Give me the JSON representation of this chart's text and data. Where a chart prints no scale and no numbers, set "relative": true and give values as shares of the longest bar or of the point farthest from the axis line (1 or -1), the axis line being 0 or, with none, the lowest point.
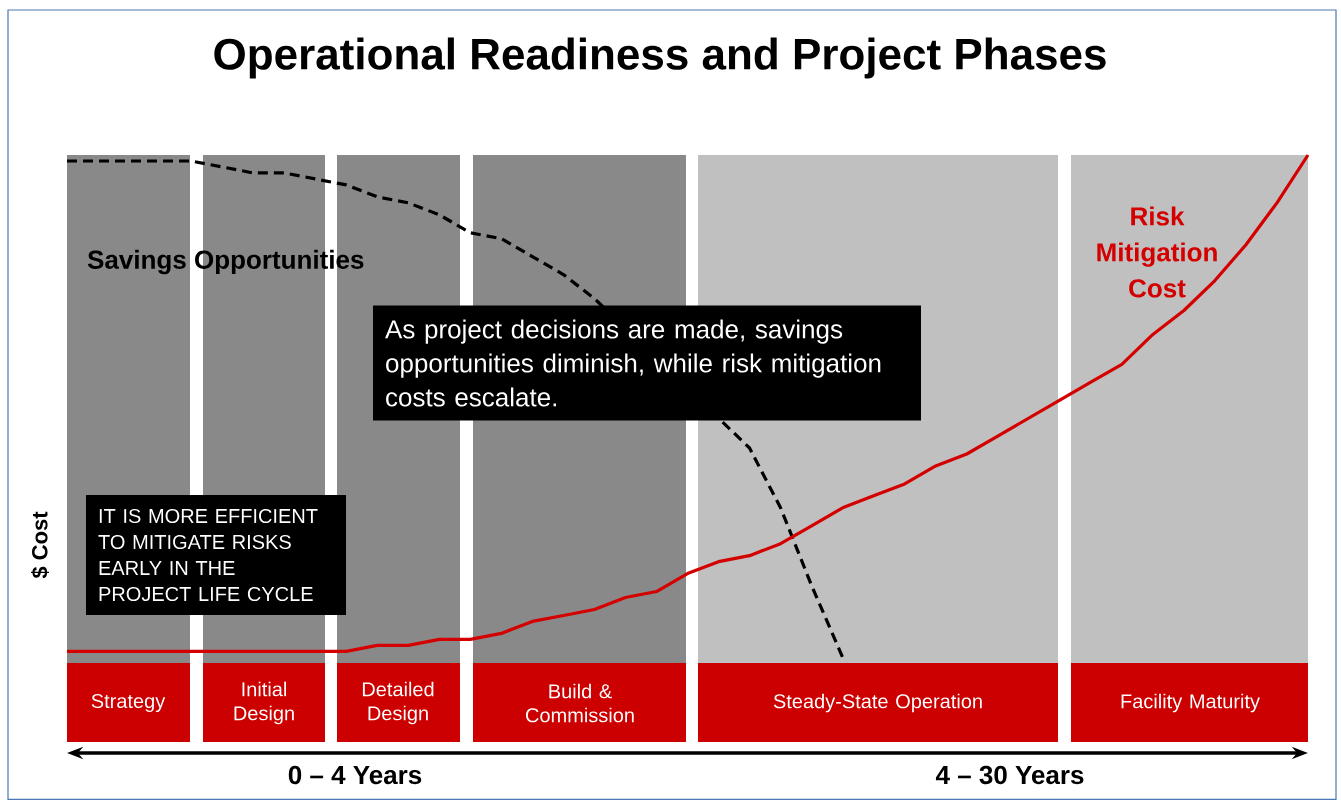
{
  "chart_data": {
    "type": "line",
    "title": "Operational Readiness and Project Phases",
    "ylabel": "$ Cost",
    "relative": true,
    "categories": [
      null,
      null,
      null,
      null,
      null,
      null,
      null,
      null,
      null,
      null,
      null,
      null,
      null,
      null,
      null,
      null,
      null,
      null,
      null,
      null,
      null,
      null,
      null,
      null,
      null,
      null,
      null,
      null,
      null,
      null,
      null,
      null,
      null,
      null,
      null,
      null,
      null,
      null,
      null,
      null,
      null
    ],
    "series": [
      {
        "name": "Savings Opportunities",
        "color": "#000000",
        "line_style": "dashed",
        "values": [
          0.99,
          0.99,
          0.99,
          0.99,
          0.99,
          0.98,
          0.97,
          0.97,
          0.96,
          0.95,
          0.93,
          0.92,
          0.9,
          0.87,
          0.86,
          0.83,
          0.8,
          0.76,
          null,
          null,
          null,
          null,
          0.51,
          0.41,
          0.28,
          0.16,
          null,
          null,
          null,
          null,
          null,
          null,
          null,
          null,
          null,
          null,
          null,
          null,
          null,
          null,
          null
        ]
      },
      {
        "name": "Risk Mitigation Cost",
        "color": "#d40000",
        "line_style": "solid",
        "values": [
          0.17,
          0.17,
          0.17,
          0.17,
          0.17,
          0.17,
          0.17,
          0.17,
          0.17,
          0.17,
          0.18,
          0.18,
          0.19,
          0.19,
          0.2,
          0.22,
          0.23,
          0.24,
          0.26,
          0.27,
          0.3,
          0.32,
          0.33,
          0.35,
          0.38,
          0.41,
          0.43,
          0.45,
          0.48,
          0.5,
          0.53,
          0.56,
          0.59,
          0.62,
          0.65,
          0.7,
          0.74,
          0.79,
          0.85,
          0.92,
          1
        ]
      }
    ],
    "annotations": [
      "Strategy",
      "Initial Design",
      "Detailed Design",
      "Build & Commission",
      "Steady-State Operation",
      "Facility Maturity",
      "As project decisions are made, savings opportunities diminish, while risk mitigation costs escalate.",
      "IT IS MORE EFFICIENT TO MITIGATE RISKS EARLY IN THE PROJECT LIFE CYCLE",
      "0 – 4 Years",
      "4 – 30 Years"
    ]
  }
}
